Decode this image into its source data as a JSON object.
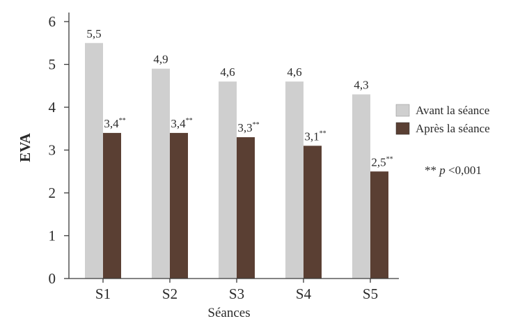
{
  "colors": {
    "avant": "#cfcfcf",
    "apres": "#5a3f33",
    "axis": "#3a3a3a"
  },
  "chart_data": {
    "type": "bar",
    "categories": [
      "S1",
      "S2",
      "S3",
      "S4",
      "S5"
    ],
    "series": [
      {
        "name": "Avant la séance",
        "values": [
          5.5,
          4.9,
          4.6,
          4.6,
          4.3
        ],
        "labels": [
          "5,5",
          "4,9",
          "4,6",
          "4,6",
          "4,3"
        ],
        "label_suffix": ""
      },
      {
        "name": "Après la séance",
        "values": [
          3.4,
          3.4,
          3.3,
          3.1,
          2.5
        ],
        "labels": [
          "3,4",
          "3,4",
          "3,3",
          "3,1",
          "2,5"
        ],
        "label_suffix": "**"
      }
    ],
    "xlabel": "Séances",
    "ylabel": "EVA",
    "ylim": [
      0,
      6
    ],
    "yticks": [
      0,
      1,
      2,
      3,
      4,
      5,
      6
    ],
    "grid": false,
    "legend_position": "right",
    "annotation": {
      "stars": "**",
      "p": "p",
      "rest": "<0,001"
    }
  }
}
